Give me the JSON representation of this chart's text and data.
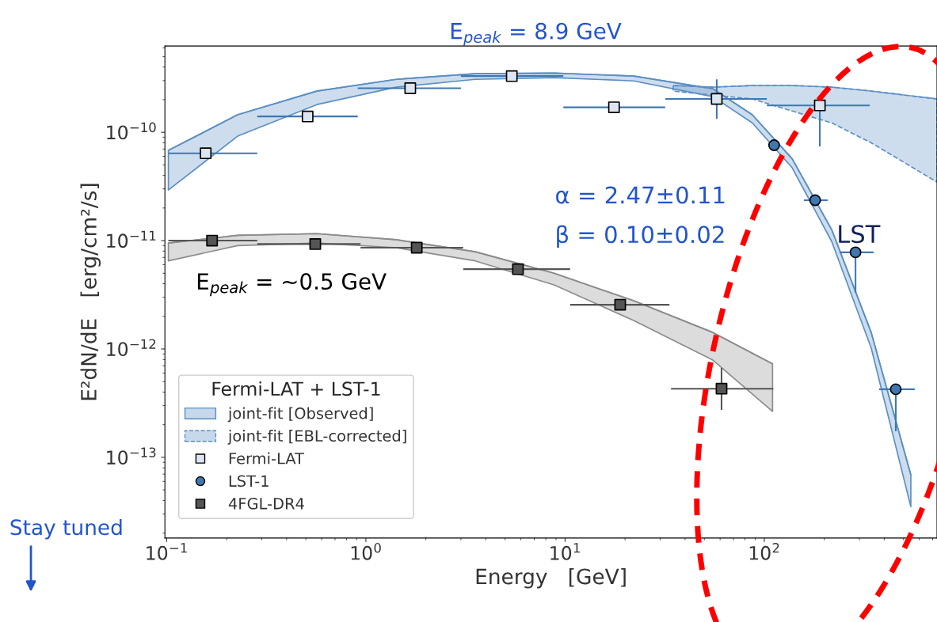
{
  "chart_data": {
    "type": "scatter",
    "title": "E$_{peak}$ = 8.9 GeV",
    "xlabel": "Energy   [GeV]",
    "ylabel": "E²dN/dE   [erg/cm²/s]",
    "legend_title": "Fermi-LAT + LST-1",
    "log": "xy",
    "xlim": [
      0.098,
      736
    ],
    "ylim": [
      1.8e-14,
      6.25e-10
    ],
    "xticks": [
      {
        "value": 0.1,
        "label": "10$^{−1}$"
      },
      {
        "value": 1,
        "label": "10$^{0}$"
      },
      {
        "value": 10,
        "label": "10$^{1}$"
      },
      {
        "value": 100,
        "label": "10$^{2}$"
      }
    ],
    "yticks": [
      {
        "value": 1e-13,
        "label": "10$^{−13}$"
      },
      {
        "value": 1e-12,
        "label": "10$^{−12}$"
      },
      {
        "value": 1e-11,
        "label": "10$^{−11}$"
      },
      {
        "value": 1e-10,
        "label": "10$^{−10}$"
      }
    ],
    "legend": "bottom left",
    "annotations": [
      "α = 2.47±0.11",
      "β = 0.10±0.02",
      "LST",
      "E$_{peak}$ = ~0.5 GeV",
      "Stay tuned"
    ],
    "series": [
      {
        "name": "joint-fit [Observed]",
        "type": "line",
        "color": "#5b8fc4",
        "line_style": "solid",
        "x": [
          0.102,
          0.227,
          0.567,
          1.42,
          3.54,
          8.8,
          22.1,
          55.2,
          87,
          138,
          218,
          344,
          544
        ],
        "values": [
          6.8e-11,
          1.45e-10,
          2.4e-10,
          3.08e-10,
          3.47e-10,
          3.52e-10,
          3.3e-10,
          2.52e-10,
          1.45e-10,
          5.7e-11,
          1.26e-11,
          1.42e-12,
          6.9e-14
        ],
        "lower": [
          2.93e-11,
          9.2e-11,
          1.8e-10,
          2.61e-10,
          3.08e-10,
          3.19e-10,
          2.98e-10,
          2.13e-10,
          1.22e-10,
          4.7e-11,
          9.8e-12,
          1.02e-12,
          3.5e-14
        ],
        "upper": [
          6.8e-11,
          1.45e-10,
          2.4e-10,
          3.08e-10,
          3.47e-10,
          3.52e-10,
          3.3e-10,
          2.52e-10,
          1.45e-10,
          5.7e-11,
          1.26e-11,
          1.42e-12,
          6.9e-14
        ]
      },
      {
        "name": "joint-fit [EBL-corrected]",
        "type": "line",
        "color": "#5b8fc4",
        "line_style": "dashed",
        "x": [
          34.9,
          55.2,
          87,
          138,
          218,
          344,
          736
        ],
        "values": [
          2.7e-10,
          2.61e-10,
          2.7e-10,
          2.7e-10,
          2.61e-10,
          2.4e-10,
          2.03e-10
        ],
        "lower": [
          2.4e-10,
          2.2e-10,
          2.03e-10,
          1.57e-10,
          1.22e-10,
          8e-11,
          3.47e-11
        ],
        "upper": [
          2.7e-10,
          2.61e-10,
          2.7e-10,
          2.7e-10,
          2.61e-10,
          2.4e-10,
          2.03e-10
        ]
      },
      {
        "name": "Fermi-LAT",
        "marker": "square",
        "color": "#dde6f0",
        "x": [
          0.157,
          0.51,
          1.67,
          5.4,
          17.6,
          57.7,
          190
        ],
        "values": [
          6.4e-11,
          1.4e-10,
          2.55e-10,
          3.3e-10,
          1.7e-10,
          2.03e-10,
          1.77e-10
        ],
        "errors": [
          null,
          null,
          null,
          null,
          null,
          [
            1.33e-10,
            3.08e-10
          ],
          [
            7.4e-11,
            1.77e-10
          ]
        ],
        "xerrors": [
          [
            0.102,
            0.285
          ],
          [
            0.285,
            0.91
          ],
          [
            0.91,
            3.0
          ],
          [
            3.0,
            9.8
          ],
          [
            9.8,
            31.8
          ],
          [
            31.8,
            103
          ],
          [
            103,
            338
          ]
        ]
      },
      {
        "name": "LST-1",
        "marker": "circle",
        "color": "#3f78b0",
        "x": [
          112,
          180,
          287,
          457
        ],
        "values": [
          7.6e-11,
          2.36e-11,
          7.8e-12,
          4.25e-13
        ],
        "errors": [
          null,
          null,
          [
            3.3e-12,
            7.8e-12
          ],
          [
            1.74e-13,
            4.25e-13
          ]
        ],
        "xerrors": [
          null,
          [
            158,
            208
          ],
          [
            239,
            354
          ],
          [
            377,
            569
          ]
        ]
      },
      {
        "name": "4FGL-DR4",
        "marker": "square",
        "color": "#555555",
        "x": [
          0.169,
          0.557,
          1.8,
          5.8,
          18.9,
          61
        ],
        "values": [
          1e-11,
          9.3e-12,
          8.6e-12,
          5.45e-12,
          2.56e-12,
          4.3e-13
        ],
        "errors": [
          null,
          null,
          null,
          null,
          null,
          [
            2.74e-13,
            6.7e-13
          ]
        ],
        "xerrors": [
          [
            0.102,
            0.285
          ],
          [
            0.285,
            0.94
          ],
          [
            0.94,
            3.08
          ],
          [
            3.08,
            10.6
          ],
          [
            10.6,
            33.4
          ],
          [
            34,
            111
          ]
        ]
      },
      {
        "type": "line",
        "color": "#8c8c8c",
        "line_style": "solid",
        "x": [
          0.102,
          0.227,
          0.567,
          1.42,
          3.54,
          8.8,
          22.1,
          55.2,
          110
        ],
        "values": [
          9.5e-12,
          1.12e-11,
          1.16e-11,
          1.02e-11,
          7.9e-12,
          5e-12,
          2.79e-12,
          1.42e-12,
          7.3e-13
        ],
        "lower": [
          6.5e-12,
          9e-12,
          9.5e-12,
          8.6e-12,
          6.5e-12,
          3.9e-12,
          1.83e-12,
          7.9e-13,
          2.65e-13
        ],
        "upper": [
          9.5e-12,
          1.12e-11,
          1.16e-11,
          1.02e-11,
          7.9e-12,
          5e-12,
          2.79e-12,
          1.42e-12,
          7.3e-13
        ]
      }
    ]
  }
}
